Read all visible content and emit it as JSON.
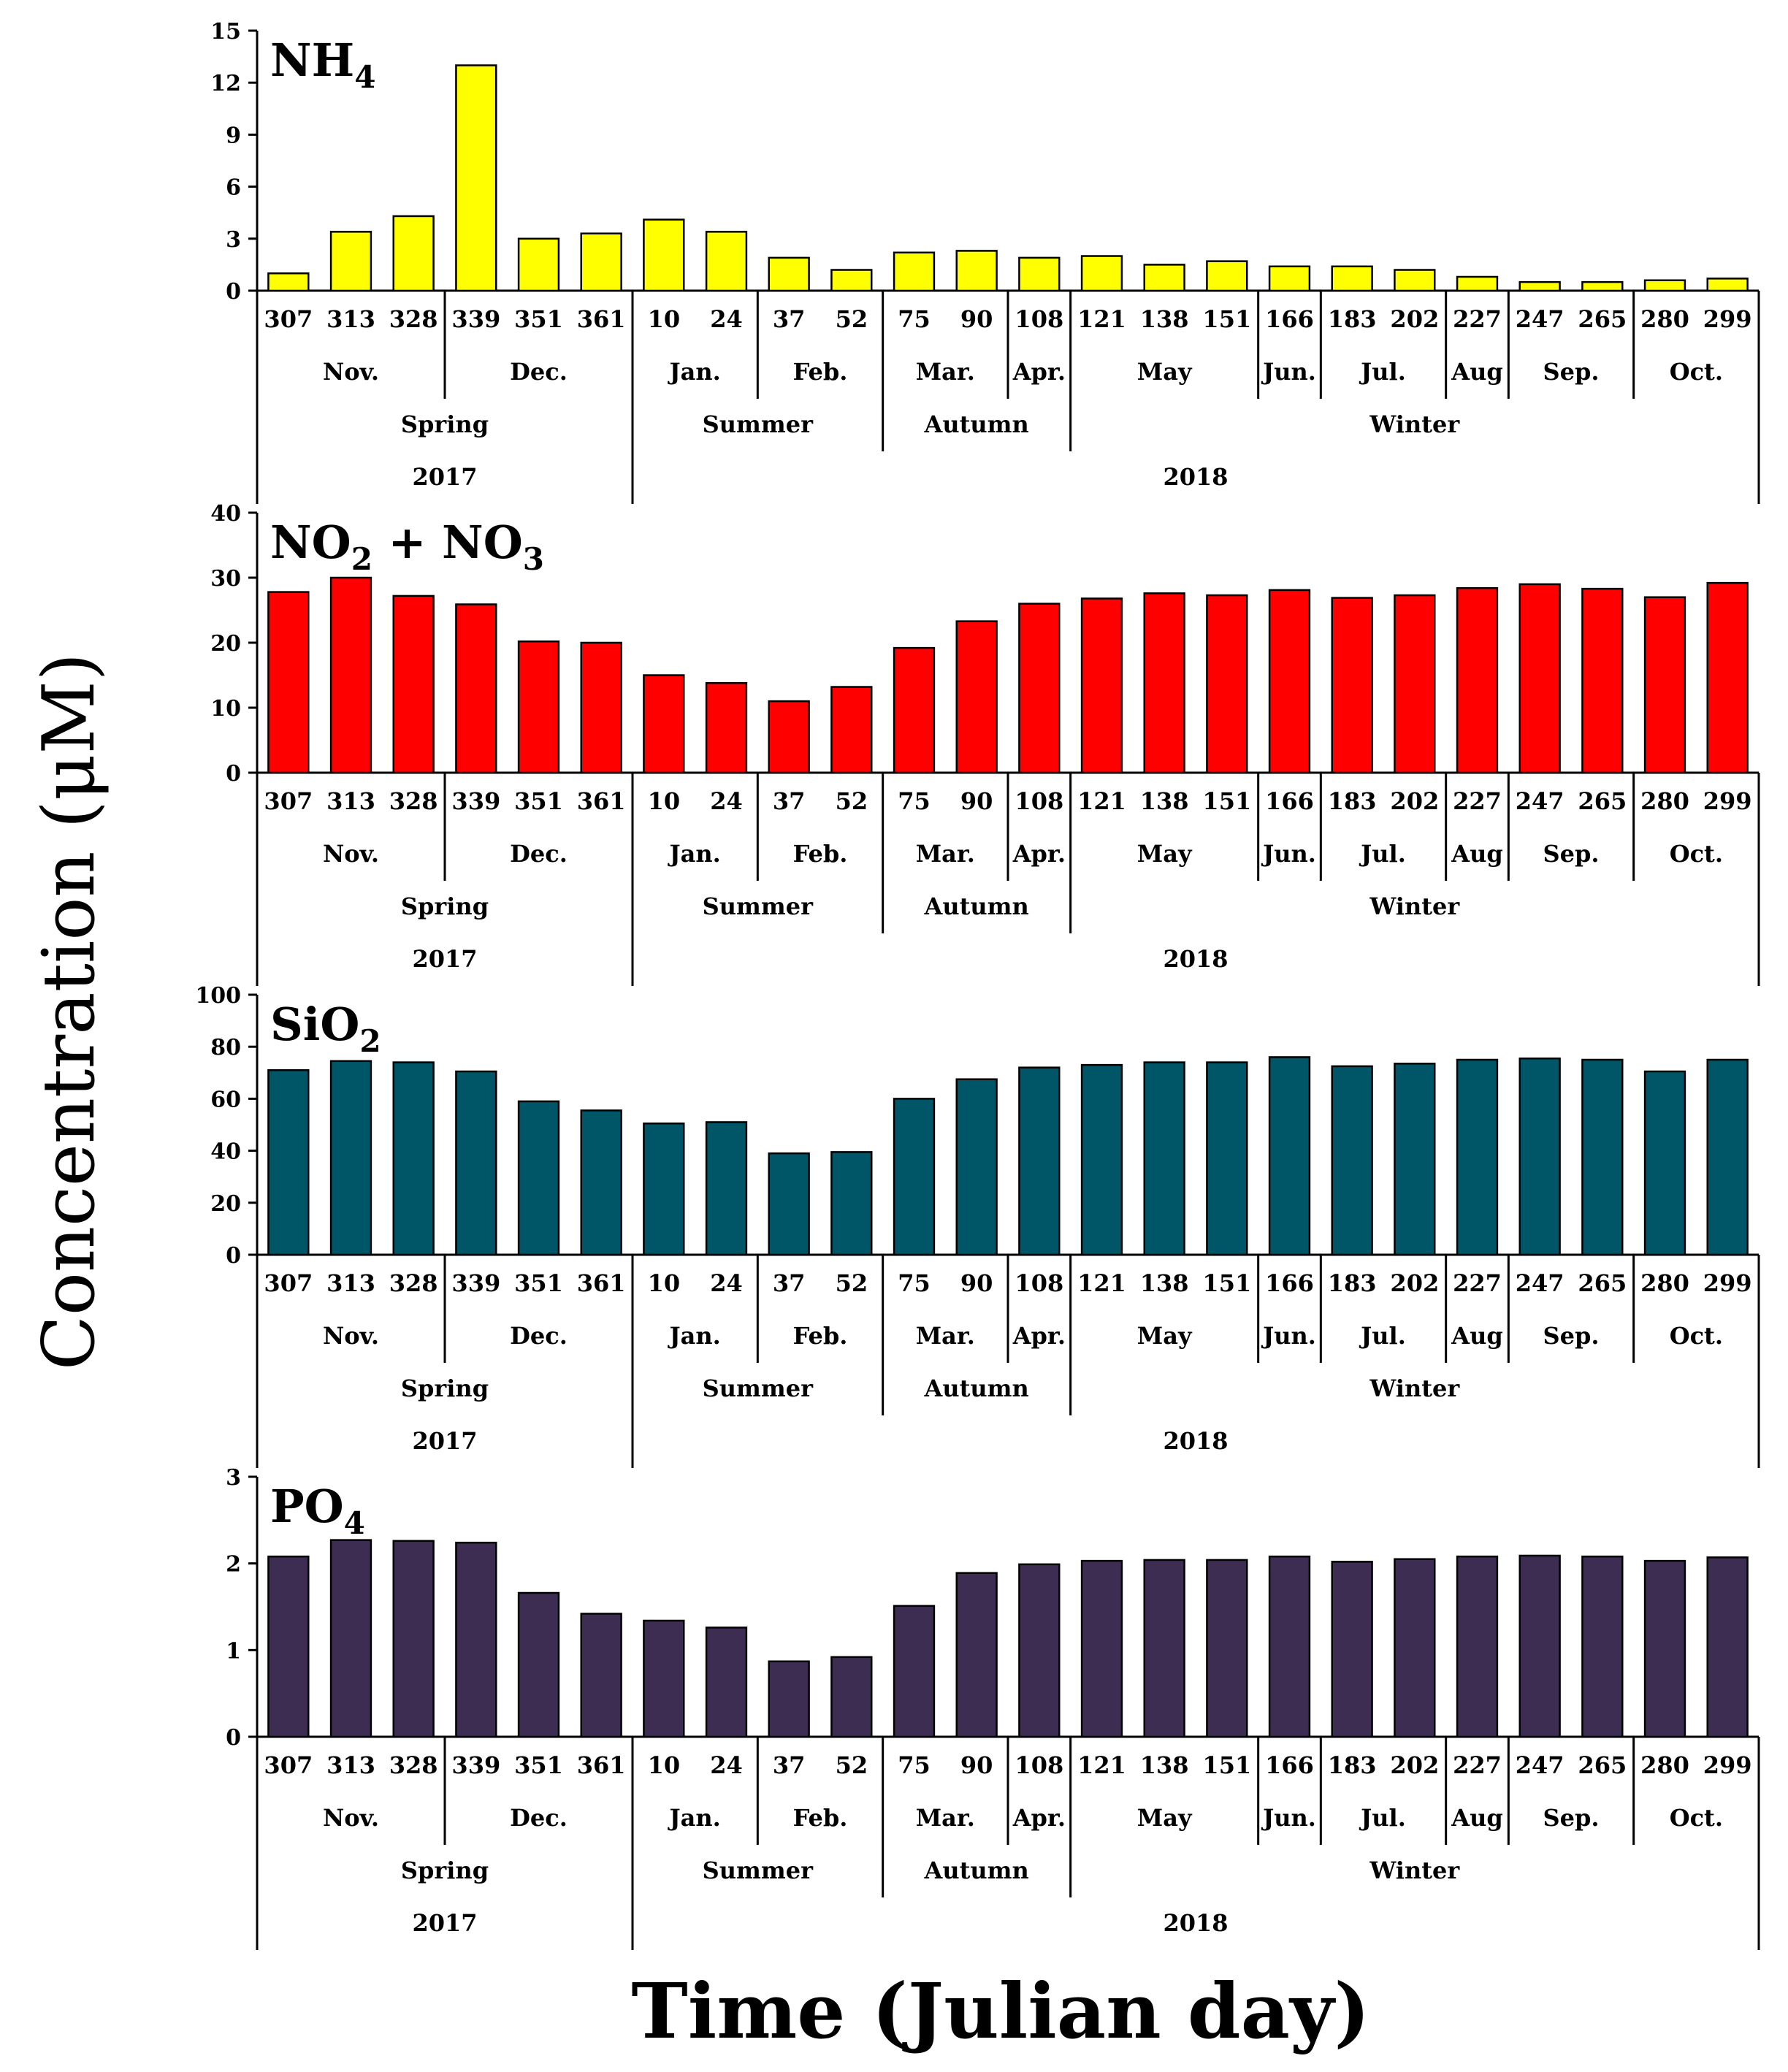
{
  "ylabel": "Concentration (μM)",
  "xlabel": "Time (Julian day)",
  "colors": {
    "nh4": "#ffff00",
    "no": "#ff0000",
    "sio2": "#005566",
    "po4": "#3e2d52",
    "outline": "#000000"
  },
  "chart_data": [
    {
      "type": "bar",
      "title": "NH4",
      "title_main": "NH",
      "title_sub": "4",
      "categories": [
        "307",
        "313",
        "328",
        "339",
        "351",
        "361",
        "10",
        "24",
        "37",
        "52",
        "75",
        "90",
        "108",
        "121",
        "138",
        "151",
        "166",
        "183",
        "202",
        "227",
        "247",
        "265",
        "280",
        "299"
      ],
      "values": [
        1.0,
        3.4,
        4.3,
        13.0,
        3.0,
        3.3,
        4.1,
        3.4,
        1.9,
        1.2,
        2.2,
        2.3,
        1.9,
        2.0,
        1.5,
        1.7,
        1.4,
        1.4,
        1.2,
        0.8,
        0.5,
        0.5,
        0.6,
        0.7
      ],
      "ylim": [
        0,
        15
      ],
      "yticks": [
        "0",
        "3",
        "6",
        "9",
        "12",
        "15"
      ],
      "color": "#ffff00"
    },
    {
      "type": "bar",
      "title": "NO2 + NO3",
      "title_main": "NO",
      "title_sub": "2",
      "title_main2": " + NO",
      "title_sub2": "3",
      "categories": [
        "307",
        "313",
        "328",
        "339",
        "351",
        "361",
        "10",
        "24",
        "37",
        "52",
        "75",
        "90",
        "108",
        "121",
        "138",
        "151",
        "166",
        "183",
        "202",
        "227",
        "247",
        "265",
        "280",
        "299"
      ],
      "values": [
        27.8,
        30.0,
        27.2,
        25.9,
        20.2,
        20.0,
        15.0,
        13.8,
        11.0,
        13.2,
        19.2,
        23.3,
        26.0,
        26.8,
        27.6,
        27.3,
        28.1,
        26.9,
        27.3,
        28.4,
        29.0,
        28.3,
        27.0,
        29.2
      ],
      "ylim": [
        0,
        40
      ],
      "yticks": [
        "0",
        "10",
        "20",
        "30",
        "40"
      ],
      "color": "#ff0000"
    },
    {
      "type": "bar",
      "title": "SiO2",
      "title_main": "SiO",
      "title_sub": "2",
      "categories": [
        "307",
        "313",
        "328",
        "339",
        "351",
        "361",
        "10",
        "24",
        "37",
        "52",
        "75",
        "90",
        "108",
        "121",
        "138",
        "151",
        "166",
        "183",
        "202",
        "227",
        "247",
        "265",
        "280",
        "299"
      ],
      "values": [
        71,
        74.5,
        74,
        70.5,
        59,
        55.5,
        50.5,
        51,
        39,
        39.5,
        60,
        67.5,
        72,
        73,
        74,
        74,
        76,
        72.5,
        73.5,
        75,
        75.5,
        75,
        70.5,
        75
      ],
      "ylim": [
        0,
        100
      ],
      "yticks": [
        "0",
        "20",
        "40",
        "60",
        "80",
        "100"
      ],
      "color": "#005566"
    },
    {
      "type": "bar",
      "title": "PO4",
      "title_main": "PO",
      "title_sub": "4",
      "categories": [
        "307",
        "313",
        "328",
        "339",
        "351",
        "361",
        "10",
        "24",
        "37",
        "52",
        "75",
        "90",
        "108",
        "121",
        "138",
        "151",
        "166",
        "183",
        "202",
        "227",
        "247",
        "265",
        "280",
        "299"
      ],
      "values": [
        2.08,
        2.27,
        2.26,
        2.24,
        1.66,
        1.42,
        1.34,
        1.26,
        0.87,
        0.92,
        1.51,
        1.89,
        1.99,
        2.03,
        2.04,
        2.04,
        2.08,
        2.02,
        2.05,
        2.08,
        2.09,
        2.08,
        2.03,
        2.07
      ],
      "ylim": [
        0,
        3
      ],
      "yticks": [
        "0",
        "1",
        "2",
        "3"
      ],
      "color": "#3e2d52"
    }
  ],
  "months": [
    "Nov.",
    "Dec.",
    "Jan.",
    "Feb.",
    "Mar.",
    "Apr.",
    "May",
    "Jun.",
    "Jul.",
    "Aug",
    "Sep.",
    "Oct."
  ],
  "seasons": [
    "Spring",
    "Summer",
    "Autumn",
    "Winter"
  ],
  "years": [
    "2017",
    "2018"
  ]
}
